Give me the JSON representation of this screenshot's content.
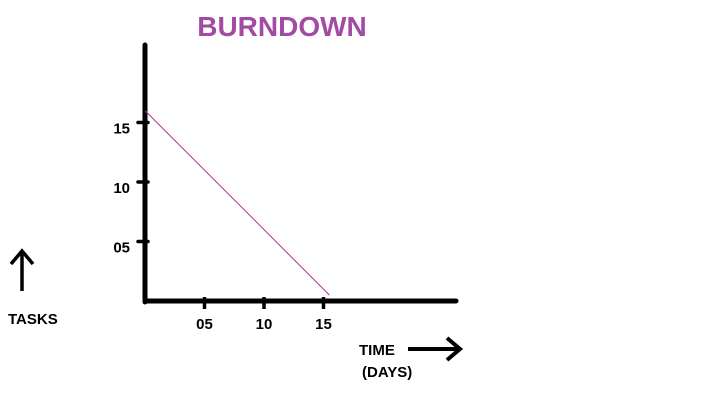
{
  "chart_data": {
    "type": "line",
    "title": "BURNDOWN",
    "xlabel": "TIME",
    "xlabel_unit": "(DAYS)",
    "ylabel": "TASKS",
    "x_ticks": [
      "05",
      "10",
      "15"
    ],
    "y_ticks": [
      "05",
      "10",
      "15"
    ],
    "xlim": [
      0,
      26
    ],
    "ylim": [
      0,
      20
    ],
    "series": [
      {
        "x": [
          0,
          15.5
        ],
        "y": [
          16,
          0.5
        ]
      }
    ],
    "grid": false,
    "legend": "none",
    "colors": {
      "title": "#a14ba5",
      "line": "#b0308e",
      "axis": "#000000"
    }
  }
}
